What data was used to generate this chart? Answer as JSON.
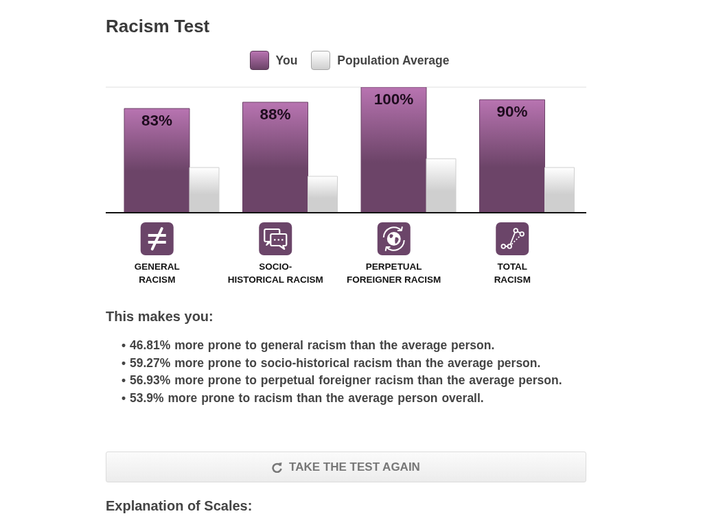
{
  "chart_data": {
    "type": "bar",
    "title": "Racism Test",
    "categories": [
      "GENERAL\nRACISM",
      "SOCIO-\nHISTORICAL RACISM",
      "PERPETUAL\nFOREIGNER RACISM",
      "TOTAL\nRACISM"
    ],
    "series": [
      {
        "name": "You",
        "color": "#6c4468",
        "values": [
          83,
          88,
          100,
          90
        ],
        "value_labels": [
          "83%",
          "88%",
          "100%",
          "90%"
        ]
      },
      {
        "name": "Population Average",
        "color": "#cfcfcf",
        "values": [
          36,
          29,
          43,
          36
        ]
      }
    ],
    "ylim": [
      0,
      100
    ],
    "yticks": [
      {
        "value": 100,
        "label": null
      }
    ],
    "grid": "y",
    "legend": "top",
    "tick_labels": "x",
    "annotations": [
      "This makes you:",
      "• 46.81% more prone to general racism than the average person.",
      "• 59.27% more prone to socio-historical racism than the average person.",
      "• 56.93% more prone to perpetual foreigner racism than the average person.",
      "• 53.9% more prone to racism than the average person overall.",
      "TAKE THE TEST AGAIN",
      "Explanation of Scales:"
    ]
  }
}
